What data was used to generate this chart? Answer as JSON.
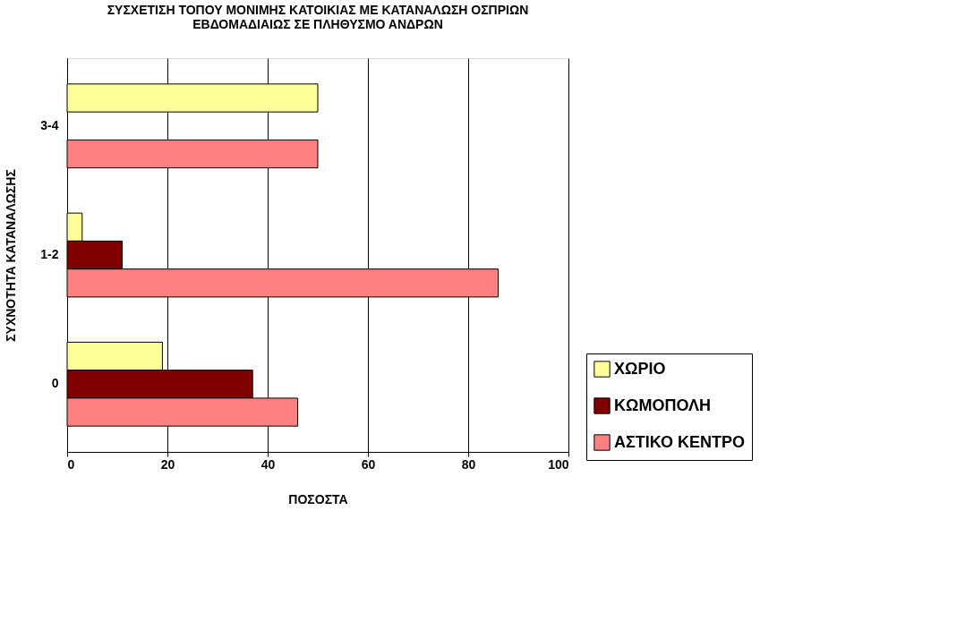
{
  "chart_data": {
    "type": "bar",
    "orientation": "horizontal",
    "title": [
      "ΣΥΣΧΕΤΙΣΗ ΤΟΠΟΥ ΜΟΝΙΜΗΣ ΚΑΤΟΙΚΙΑΣ ΜΕ ΚΑΤΑΝΑΛΩΣΗ ΟΣΠΡΙΩΝ",
      "ΕΒΔΟΜΑΔΙΑΙΩΣ ΣΕ ΠΛΗΘΥΣΜΟ ΑΝΔΡΩΝ"
    ],
    "xlabel": "ΠΟΣΟΣΤΑ",
    "ylabel": "ΣΥΧΝΟΤΗΤΑ ΚΑΤΑΝΑΛΩΣΗΣ",
    "categories": [
      "3-4",
      "1-2",
      "0"
    ],
    "series": [
      {
        "name": "ΧΩΡΙΟ",
        "color": "#ffff99",
        "values": [
          50,
          3,
          19
        ]
      },
      {
        "name": "ΚΩΜΟΠΟΛΗ",
        "color": "#800000",
        "values": [
          null,
          11,
          37
        ]
      },
      {
        "name": "ΑΣΤΙΚΟ ΚΕΝΤΡΟ",
        "color": "#ff8080",
        "values": [
          50,
          86,
          46
        ]
      }
    ],
    "xlim": [
      0,
      100
    ],
    "xticks": [
      0,
      20,
      40,
      60,
      80,
      100
    ],
    "grid": "x",
    "legend": "bottom right"
  }
}
